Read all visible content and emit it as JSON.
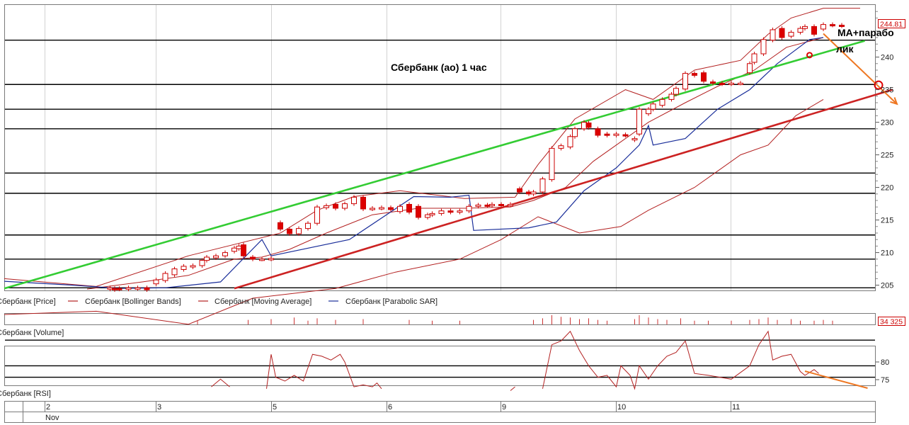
{
  "chart_data": {
    "type": "line",
    "title": "Сбербанк (ао)   1 час",
    "annotation": "МА+парабо лик",
    "price_axis": {
      "ylim": [
        204,
        249
      ],
      "ticks": [
        205,
        210,
        215,
        220,
        225,
        230,
        235,
        240
      ]
    },
    "last_price_label": "244.81",
    "volume_label": "34 325",
    "rsi_axis": {
      "ticks": [
        75,
        80
      ]
    },
    "date_axis": {
      "ticks": [
        "2",
        "3",
        "5",
        "6",
        "9",
        "10",
        "11"
      ],
      "month": "Nov"
    },
    "legend": [
      {
        "name": "Сбербанк [Price]",
        "color": "#cc0000"
      },
      {
        "name": "Сбербанк [Bollinger Bands]",
        "color": "#b32020"
      },
      {
        "name": "Сбербанк [Moving Average]",
        "color": "#b32020"
      },
      {
        "name": "Сбербанк [Parabolic SAR]",
        "color": "#1a2e9a"
      }
    ],
    "volume_legend": "Сбербанк [Volume]",
    "rsi_legend": "Сбербанк [RSI]",
    "horizontal_levels": [
      204.6,
      209,
      212.7,
      219.1,
      222.2,
      229,
      232,
      235.8,
      242.6
    ],
    "trendlines": [
      {
        "color": "#33cc33",
        "points": [
          [
            0,
            204.5
          ],
          [
            187,
            242.5
          ]
        ]
      },
      {
        "color": "#cc2222",
        "points": [
          [
            50,
            204.5
          ],
          [
            193,
            235
          ]
        ]
      }
    ],
    "forecast_arrows": [
      {
        "color": "#ee7722",
        "from": [
          178,
          243.6
        ],
        "to": [
          194,
          232.8
        ]
      },
      {
        "color": "#ee7722",
        "from": [
          174,
          75.2
        ],
        "to": [
          187,
          72
        ]
      }
    ],
    "circles": [
      [
        190,
        235.7
      ],
      [
        175,
        240.3
      ]
    ],
    "candles": [
      {
        "x": 23,
        "o": 204.4,
        "c": 204.6
      },
      {
        "x": 24,
        "o": 204.5,
        "c": 204.3
      },
      {
        "x": 25,
        "o": 204.5,
        "c": 204.4
      },
      {
        "x": 27,
        "o": 204.4,
        "c": 204.6
      },
      {
        "x": 29,
        "o": 204.5,
        "c": 204.6
      },
      {
        "x": 31,
        "o": 204.6,
        "c": 204.3
      },
      {
        "x": 33,
        "o": 205.2,
        "c": 205.8
      },
      {
        "x": 35,
        "o": 205.7,
        "c": 206.8
      },
      {
        "x": 37,
        "o": 206.6,
        "c": 207.5
      },
      {
        "x": 39,
        "o": 207.4,
        "c": 207.9
      },
      {
        "x": 41,
        "o": 207.8,
        "c": 208.0
      },
      {
        "x": 43,
        "o": 208.0,
        "c": 208.8
      },
      {
        "x": 44,
        "o": 208.8,
        "c": 209.3
      },
      {
        "x": 46,
        "o": 209.2,
        "c": 209.5
      },
      {
        "x": 48,
        "o": 209.5,
        "c": 210.0
      },
      {
        "x": 50,
        "o": 210.2,
        "c": 210.7
      },
      {
        "x": 51,
        "o": 210.6,
        "c": 211.0
      },
      {
        "x": 52,
        "o": 211.2,
        "c": 209.5
      },
      {
        "x": 54,
        "o": 209.3,
        "c": 209.0
      },
      {
        "x": 56,
        "o": 209.0,
        "c": 209.0
      },
      {
        "x": 58,
        "o": 209.0,
        "c": 209.1
      },
      {
        "x": 60,
        "o": 214.6,
        "c": 213.6
      },
      {
        "x": 62,
        "o": 213.6,
        "c": 212.9
      },
      {
        "x": 64,
        "o": 212.9,
        "c": 213.7
      },
      {
        "x": 66,
        "o": 213.7,
        "c": 214.5
      },
      {
        "x": 68,
        "o": 214.5,
        "c": 217.0
      },
      {
        "x": 70,
        "o": 216.9,
        "c": 217.2
      },
      {
        "x": 72,
        "o": 217.4,
        "c": 216.8
      },
      {
        "x": 74,
        "o": 216.8,
        "c": 217.5
      },
      {
        "x": 76,
        "o": 217.5,
        "c": 218.5
      },
      {
        "x": 78,
        "o": 218.5,
        "c": 216.7
      },
      {
        "x": 80,
        "o": 216.7,
        "c": 216.8
      },
      {
        "x": 82,
        "o": 216.8,
        "c": 216.9
      },
      {
        "x": 84,
        "o": 216.9,
        "c": 216.6
      },
      {
        "x": 86,
        "o": 216.3,
        "c": 217.1
      },
      {
        "x": 88,
        "o": 217.4,
        "c": 216.2
      },
      {
        "x": 90,
        "o": 217.1,
        "c": 215.4
      },
      {
        "x": 92,
        "o": 215.4,
        "c": 215.8
      },
      {
        "x": 93,
        "o": 215.8,
        "c": 216.0
      },
      {
        "x": 95,
        "o": 216.0,
        "c": 216.4
      },
      {
        "x": 97,
        "o": 216.4,
        "c": 216.2
      },
      {
        "x": 99,
        "o": 216.2,
        "c": 216.4
      },
      {
        "x": 101,
        "o": 216.4,
        "c": 217.1
      },
      {
        "x": 103,
        "o": 217.1,
        "c": 217.3
      },
      {
        "x": 105,
        "o": 217.3,
        "c": 217.2
      },
      {
        "x": 106,
        "o": 217.2,
        "c": 217.4
      },
      {
        "x": 108,
        "o": 217.4,
        "c": 217.3
      },
      {
        "x": 110,
        "o": 217.3,
        "c": 217.4
      },
      {
        "x": 112,
        "o": 219.8,
        "c": 219.3
      },
      {
        "x": 114,
        "o": 219.3,
        "c": 219.0
      },
      {
        "x": 115,
        "o": 219.0,
        "c": 219.3
      },
      {
        "x": 117,
        "o": 219.3,
        "c": 221.3
      },
      {
        "x": 119,
        "o": 221.2,
        "c": 226.0
      },
      {
        "x": 121,
        "o": 226.0,
        "c": 226.4
      },
      {
        "x": 123,
        "o": 226.2,
        "c": 227.8
      },
      {
        "x": 124,
        "o": 227.8,
        "c": 229.0
      },
      {
        "x": 126,
        "o": 229.0,
        "c": 230.0
      },
      {
        "x": 127,
        "o": 229.9,
        "c": 229.2
      },
      {
        "x": 129,
        "o": 229.0,
        "c": 228.0
      },
      {
        "x": 131,
        "o": 228.2,
        "c": 228.0
      },
      {
        "x": 133,
        "o": 228.0,
        "c": 228.2
      },
      {
        "x": 135,
        "o": 228.1,
        "c": 228.0
      },
      {
        "x": 137,
        "o": 227.3,
        "c": 227.5
      },
      {
        "x": 138,
        "o": 228.2,
        "c": 232.0
      },
      {
        "x": 140,
        "o": 231.3,
        "c": 232.0
      },
      {
        "x": 141,
        "o": 232.0,
        "c": 232.8
      },
      {
        "x": 143,
        "o": 232.6,
        "c": 233.5
      },
      {
        "x": 145,
        "o": 233.5,
        "c": 234.3
      },
      {
        "x": 146,
        "o": 234.3,
        "c": 235.2
      },
      {
        "x": 148,
        "o": 235.1,
        "c": 237.5
      },
      {
        "x": 150,
        "o": 237.5,
        "c": 237.2
      },
      {
        "x": 152,
        "o": 237.6,
        "c": 236.3
      },
      {
        "x": 154,
        "o": 236.2,
        "c": 236.0
      },
      {
        "x": 156,
        "o": 236.0,
        "c": 235.9
      },
      {
        "x": 158,
        "o": 235.9,
        "c": 236.0
      },
      {
        "x": 160,
        "o": 236.0,
        "c": 236.0
      },
      {
        "x": 162,
        "o": 237.6,
        "c": 239.0
      },
      {
        "x": 163,
        "o": 239.2,
        "c": 240.5
      },
      {
        "x": 165,
        "o": 240.5,
        "c": 242.7
      },
      {
        "x": 167,
        "o": 242.6,
        "c": 244.2
      },
      {
        "x": 169,
        "o": 244.4,
        "c": 243.0
      },
      {
        "x": 171,
        "o": 243.2,
        "c": 243.8
      },
      {
        "x": 173,
        "o": 243.8,
        "c": 244.4
      },
      {
        "x": 174,
        "o": 244.4,
        "c": 244.7
      },
      {
        "x": 176,
        "o": 244.7,
        "c": 243.5
      },
      {
        "x": 178,
        "o": 244.3,
        "c": 245.0
      },
      {
        "x": 180,
        "o": 245.0,
        "c": 244.9
      },
      {
        "x": 182,
        "o": 244.9,
        "c": 244.8
      }
    ],
    "bollinger_upper": [
      [
        0,
        206
      ],
      [
        20,
        204.8
      ],
      [
        40,
        209.5
      ],
      [
        60,
        213
      ],
      [
        68,
        216.5
      ],
      [
        76,
        218.6
      ],
      [
        86,
        219.5
      ],
      [
        100,
        218.3
      ],
      [
        111,
        218.5
      ],
      [
        116,
        223.5
      ],
      [
        124,
        230.5
      ],
      [
        135,
        235
      ],
      [
        141,
        233.5
      ],
      [
        150,
        238
      ],
      [
        160,
        239.5
      ],
      [
        166,
        243.5
      ],
      [
        171,
        246
      ],
      [
        178,
        247.5
      ],
      [
        186,
        247.5
      ]
    ],
    "bollinger_lower": [
      [
        0,
        200.5
      ],
      [
        20,
        201
      ],
      [
        40,
        199
      ],
      [
        54,
        203
      ],
      [
        72,
        204.5
      ],
      [
        85,
        207
      ],
      [
        99,
        209
      ],
      [
        108,
        212
      ],
      [
        116,
        215.5
      ],
      [
        125,
        213
      ],
      [
        134,
        214
      ],
      [
        140,
        216.5
      ],
      [
        150,
        220
      ],
      [
        160,
        225
      ],
      [
        166,
        226.5
      ],
      [
        172,
        231
      ],
      [
        178,
        233.5
      ]
    ],
    "moving_average": [
      [
        18,
        204.4
      ],
      [
        30,
        205.5
      ],
      [
        40,
        206.5
      ],
      [
        50,
        209
      ],
      [
        56,
        209.3
      ],
      [
        62,
        210.5
      ],
      [
        70,
        213
      ],
      [
        80,
        215.8
      ],
      [
        90,
        216.8
      ],
      [
        100,
        216.8
      ],
      [
        110,
        217
      ],
      [
        115,
        218
      ],
      [
        122,
        220
      ],
      [
        128,
        224
      ],
      [
        134,
        227
      ],
      [
        140,
        230
      ],
      [
        148,
        233
      ],
      [
        155,
        235.5
      ],
      [
        163,
        238
      ],
      [
        170,
        241.5
      ],
      [
        178,
        243
      ]
    ],
    "parabolic_sar": [
      [
        0,
        205.6
      ],
      [
        15,
        205
      ],
      [
        25,
        204.5
      ],
      [
        35,
        204.6
      ],
      [
        47,
        205.5
      ],
      [
        56,
        212
      ],
      [
        58,
        209.5
      ],
      [
        75,
        212
      ],
      [
        89,
        218.6
      ],
      [
        97,
        218.5
      ],
      [
        101,
        218.8
      ],
      [
        102,
        213.4
      ],
      [
        114,
        213.8
      ],
      [
        120,
        214.7
      ],
      [
        126,
        219.5
      ],
      [
        133,
        223
      ],
      [
        138,
        226.5
      ],
      [
        140,
        229.5
      ],
      [
        141,
        226.5
      ],
      [
        148,
        227.5
      ],
      [
        155,
        232
      ],
      [
        162,
        235
      ],
      [
        168,
        239
      ],
      [
        175,
        242.7
      ],
      [
        178,
        243
      ]
    ],
    "volume": [
      {
        "x": 42,
        "v": 0.3
      },
      {
        "x": 53,
        "v": 0.4
      },
      {
        "x": 58,
        "v": 0.5
      },
      {
        "x": 63,
        "v": 0.7
      },
      {
        "x": 66,
        "v": 0.3
      },
      {
        "x": 68,
        "v": 0.6
      },
      {
        "x": 72,
        "v": 0.4
      },
      {
        "x": 78,
        "v": 0.5
      },
      {
        "x": 88,
        "v": 0.4
      },
      {
        "x": 93,
        "v": 0.3
      },
      {
        "x": 99,
        "v": 0.3
      },
      {
        "x": 115,
        "v": 0.4
      },
      {
        "x": 117,
        "v": 0.6
      },
      {
        "x": 119,
        "v": 1.0
      },
      {
        "x": 121,
        "v": 0.8
      },
      {
        "x": 123,
        "v": 0.7
      },
      {
        "x": 125,
        "v": 0.5
      },
      {
        "x": 127,
        "v": 0.6
      },
      {
        "x": 129,
        "v": 0.4
      },
      {
        "x": 131,
        "v": 0.3
      },
      {
        "x": 137,
        "v": 0.5
      },
      {
        "x": 138,
        "v": 1.0
      },
      {
        "x": 140,
        "v": 0.7
      },
      {
        "x": 142,
        "v": 0.5
      },
      {
        "x": 144,
        "v": 0.4
      },
      {
        "x": 147,
        "v": 0.6
      },
      {
        "x": 150,
        "v": 0.3
      },
      {
        "x": 153,
        "v": 0.3
      },
      {
        "x": 158,
        "v": 0.3
      },
      {
        "x": 162,
        "v": 0.4
      },
      {
        "x": 164,
        "v": 0.5
      },
      {
        "x": 166,
        "v": 0.7
      },
      {
        "x": 168,
        "v": 0.4
      },
      {
        "x": 171,
        "v": 0.5
      },
      {
        "x": 173,
        "v": 0.3
      },
      {
        "x": 176,
        "v": 0.3
      },
      {
        "x": 178,
        "v": 0.4
      },
      {
        "x": 180,
        "v": 0.3
      }
    ],
    "rsi": [
      [
        [
          45,
          73.5
        ],
        [
          47,
          75.5
        ],
        [
          49,
          73.5
        ]
      ],
      [
        [
          57,
          73
        ],
        [
          58,
          82
        ],
        [
          59,
          76
        ],
        [
          61,
          75
        ],
        [
          63,
          76.5
        ],
        [
          65,
          75
        ],
        [
          67,
          82
        ],
        [
          69,
          81.5
        ],
        [
          71,
          80.5
        ],
        [
          73,
          82
        ],
        [
          74,
          80
        ],
        [
          76,
          73.5
        ],
        [
          78,
          74
        ],
        [
          80,
          73.5
        ],
        [
          81,
          74.5
        ],
        [
          82,
          73
        ]
      ],
      [
        [
          110,
          72.5
        ],
        [
          111,
          73.5
        ]
      ],
      [
        [
          117,
          73
        ],
        [
          119,
          84.5
        ],
        [
          121,
          85.5
        ],
        [
          123,
          88
        ],
        [
          125,
          83
        ],
        [
          127,
          79
        ],
        [
          129,
          76
        ],
        [
          131,
          76.5
        ],
        [
          133,
          73.5
        ],
        [
          134,
          79
        ],
        [
          136,
          76.5
        ],
        [
          137,
          73
        ],
        [
          138,
          79
        ],
        [
          140,
          75.5
        ],
        [
          142,
          79
        ],
        [
          144,
          81.5
        ],
        [
          146,
          82.5
        ],
        [
          148,
          85.5
        ],
        [
          150,
          77
        ],
        [
          153,
          76.5
        ],
        [
          158,
          75.5
        ],
        [
          162,
          79
        ],
        [
          164,
          84.5
        ],
        [
          166,
          88
        ],
        [
          167,
          80.5
        ],
        [
          169,
          81.5
        ],
        [
          171,
          82
        ],
        [
          173,
          77.5
        ],
        [
          174,
          76.5
        ],
        [
          176,
          78
        ],
        [
          177,
          77
        ]
      ]
    ]
  }
}
